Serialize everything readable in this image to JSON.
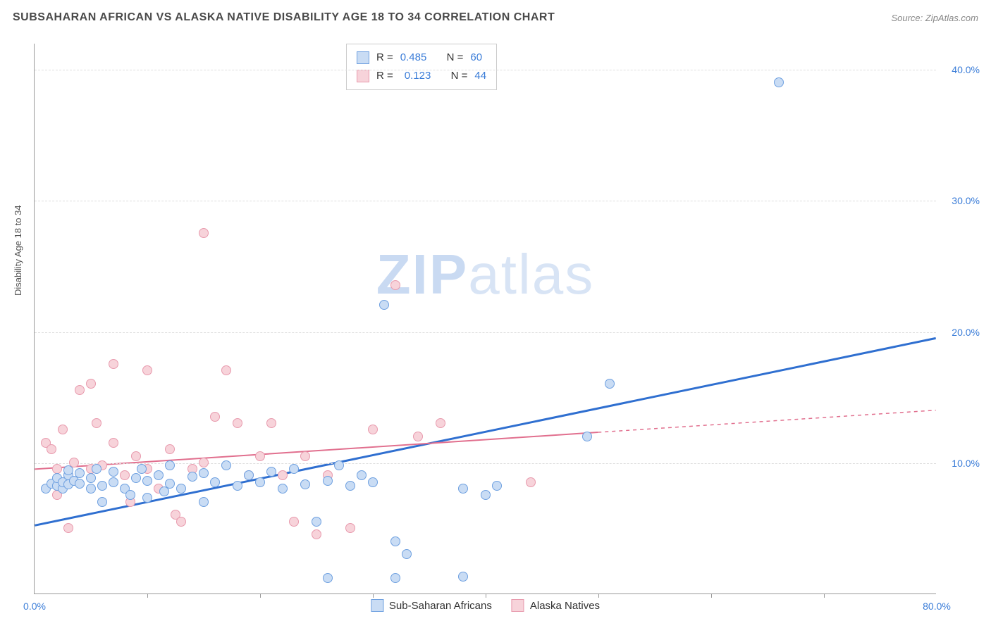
{
  "header": {
    "title": "SUBSAHARAN AFRICAN VS ALASKA NATIVE DISABILITY AGE 18 TO 34 CORRELATION CHART",
    "source_prefix": "Source: ",
    "source_name": "ZipAtlas.com"
  },
  "watermark": {
    "zip": "ZIP",
    "atlas": "atlas"
  },
  "chart": {
    "type": "scatter",
    "ylabel": "Disability Age 18 to 34",
    "xlim": [
      0,
      80
    ],
    "ylim": [
      0,
      42
    ],
    "x_ticks_minor": [
      10,
      20,
      30,
      40,
      50,
      60,
      70
    ],
    "x_tick_labels": [
      {
        "x": 0,
        "label": "0.0%"
      },
      {
        "x": 80,
        "label": "80.0%"
      }
    ],
    "y_gridlines": [
      10,
      20,
      30,
      40
    ],
    "y_tick_labels": [
      {
        "y": 10,
        "label": "10.0%"
      },
      {
        "y": 20,
        "label": "20.0%"
      },
      {
        "y": 30,
        "label": "30.0%"
      },
      {
        "y": 40,
        "label": "40.0%"
      }
    ],
    "background_color": "#ffffff",
    "grid_color": "#dddddd",
    "axis_color": "#999999",
    "marker_radius": 7,
    "marker_stroke_width": 1.5,
    "series": {
      "blue": {
        "label": "Sub-Saharan Africans",
        "fill": "#c9dcf4",
        "stroke": "#6ea0e0",
        "trend_color": "#2f6fd0",
        "trend_width": 3,
        "trend": {
          "x1": 0,
          "y1": 5.2,
          "x2": 80,
          "y2": 19.5,
          "solid_until_x": 80
        },
        "R": "0.485",
        "N": "60",
        "points": [
          [
            1,
            8.0
          ],
          [
            1.5,
            8.4
          ],
          [
            2,
            8.2
          ],
          [
            2,
            8.8
          ],
          [
            2.5,
            8.0
          ],
          [
            2.5,
            8.5
          ],
          [
            3,
            8.3
          ],
          [
            3,
            9.0
          ],
          [
            3,
            9.4
          ],
          [
            3.5,
            8.6
          ],
          [
            4,
            8.4
          ],
          [
            4,
            9.2
          ],
          [
            5,
            8.0
          ],
          [
            5,
            8.8
          ],
          [
            5.5,
            9.5
          ],
          [
            6,
            8.2
          ],
          [
            6,
            7.0
          ],
          [
            7,
            8.5
          ],
          [
            7,
            9.3
          ],
          [
            8,
            8.0
          ],
          [
            8.5,
            7.5
          ],
          [
            9,
            8.8
          ],
          [
            9.5,
            9.5
          ],
          [
            10,
            7.3
          ],
          [
            10,
            8.6
          ],
          [
            11,
            9.0
          ],
          [
            11.5,
            7.8
          ],
          [
            12,
            8.4
          ],
          [
            12,
            9.8
          ],
          [
            13,
            8.0
          ],
          [
            14,
            8.9
          ],
          [
            15,
            7.0
          ],
          [
            15,
            9.2
          ],
          [
            16,
            8.5
          ],
          [
            17,
            9.8
          ],
          [
            18,
            8.2
          ],
          [
            19,
            9.0
          ],
          [
            20,
            8.5
          ],
          [
            21,
            9.3
          ],
          [
            22,
            8.0
          ],
          [
            23,
            9.5
          ],
          [
            24,
            8.3
          ],
          [
            25,
            5.5
          ],
          [
            26,
            8.6
          ],
          [
            27,
            9.8
          ],
          [
            28,
            8.2
          ],
          [
            29,
            9.0
          ],
          [
            26,
            1.2
          ],
          [
            30,
            8.5
          ],
          [
            31,
            22.0
          ],
          [
            32,
            4.0
          ],
          [
            33,
            3.0
          ],
          [
            32,
            1.2
          ],
          [
            38,
            8.0
          ],
          [
            38,
            1.3
          ],
          [
            40,
            7.5
          ],
          [
            41,
            8.2
          ],
          [
            49,
            12.0
          ],
          [
            51,
            16.0
          ],
          [
            66,
            39.0
          ]
        ]
      },
      "pink": {
        "label": "AlaNatives",
        "label_full": "Alaska Natives",
        "fill": "#f7d3da",
        "stroke": "#e89aad",
        "trend_color": "#e16f8e",
        "trend_width": 2,
        "trend": {
          "x1": 0,
          "y1": 9.5,
          "x2": 80,
          "y2": 14.0,
          "solid_until_x": 50
        },
        "R": "0.123",
        "N": "44",
        "points": [
          [
            1,
            11.5
          ],
          [
            1.5,
            11.0
          ],
          [
            2,
            9.5
          ],
          [
            2,
            7.5
          ],
          [
            2.5,
            12.5
          ],
          [
            3,
            9.0
          ],
          [
            3,
            5.0
          ],
          [
            3.5,
            10.0
          ],
          [
            4,
            15.5
          ],
          [
            5,
            9.5
          ],
          [
            5,
            16.0
          ],
          [
            5.5,
            13.0
          ],
          [
            6,
            9.8
          ],
          [
            7,
            11.5
          ],
          [
            7,
            17.5
          ],
          [
            8,
            9.0
          ],
          [
            8.5,
            7.0
          ],
          [
            9,
            10.5
          ],
          [
            10,
            17.0
          ],
          [
            10,
            9.5
          ],
          [
            11,
            8.0
          ],
          [
            12,
            11.0
          ],
          [
            12.5,
            6.0
          ],
          [
            13,
            5.5
          ],
          [
            14,
            9.5
          ],
          [
            15,
            10.0
          ],
          [
            15,
            27.5
          ],
          [
            16,
            13.5
          ],
          [
            17,
            17.0
          ],
          [
            18,
            13.0
          ],
          [
            19,
            9.0
          ],
          [
            20,
            10.5
          ],
          [
            21,
            13.0
          ],
          [
            22,
            9.0
          ],
          [
            23,
            5.5
          ],
          [
            24,
            10.5
          ],
          [
            25,
            4.5
          ],
          [
            26,
            9.0
          ],
          [
            28,
            5.0
          ],
          [
            30,
            12.5
          ],
          [
            32,
            23.5
          ],
          [
            34,
            12.0
          ],
          [
            36,
            13.0
          ],
          [
            44,
            8.5
          ]
        ]
      }
    },
    "stats_labels": {
      "R": "R =",
      "N": "N ="
    },
    "bottom_legend": [
      "blue",
      "pink"
    ]
  }
}
